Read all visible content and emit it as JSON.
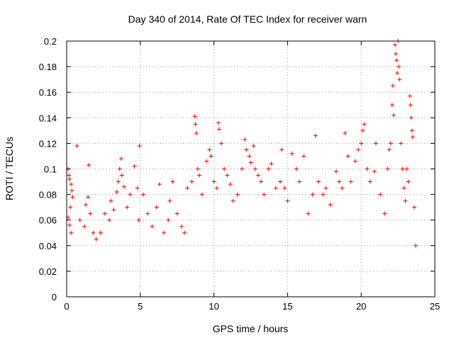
{
  "chart_data": {
    "type": "scatter",
    "title": "Day 340 of 2014, Rate Of TEC Index for receiver warn",
    "xlabel": "GPS time / hours",
    "ylabel": "ROTI / TECUs",
    "xlim": [
      0,
      25
    ],
    "ylim": [
      0,
      0.2
    ],
    "x_ticks": [
      0,
      5,
      10,
      15,
      20,
      25
    ],
    "y_ticks": [
      0,
      0.02,
      0.04,
      0.06,
      0.08,
      0.1,
      0.12,
      0.14,
      0.16,
      0.18,
      0.2
    ],
    "x_tick_labels": [
      "0",
      "5",
      "10",
      "15",
      "20",
      "25"
    ],
    "y_tick_labels": [
      "0",
      "0.02",
      "0.04",
      "0.06",
      "0.08",
      "0.1",
      "0.12",
      "0.14",
      "0.16",
      "0.18",
      "0.2"
    ],
    "grid": true,
    "marker": "+",
    "color": "#ff0000",
    "series": [
      {
        "points": [
          [
            0.1,
            0.1
          ],
          [
            0.15,
            0.095
          ],
          [
            0.2,
            0.092
          ],
          [
            0.3,
            0.088
          ],
          [
            0.35,
            0.083
          ],
          [
            0.4,
            0.078
          ],
          [
            0.25,
            0.07
          ],
          [
            0.1,
            0.062
          ],
          [
            0.2,
            0.056
          ],
          [
            0.3,
            0.05
          ],
          [
            0.7,
            0.118
          ],
          [
            0.9,
            0.06
          ],
          [
            1.2,
            0.055
          ],
          [
            1.3,
            0.072
          ],
          [
            1.45,
            0.078
          ],
          [
            1.5,
            0.103
          ],
          [
            1.6,
            0.065
          ],
          [
            1.8,
            0.05
          ],
          [
            2.0,
            0.045
          ],
          [
            2.3,
            0.05
          ],
          [
            2.6,
            0.065
          ],
          [
            2.9,
            0.06
          ],
          [
            3.0,
            0.075
          ],
          [
            3.2,
            0.068
          ],
          [
            3.4,
            0.082
          ],
          [
            3.5,
            0.09
          ],
          [
            3.6,
            0.1
          ],
          [
            3.7,
            0.108
          ],
          [
            3.75,
            0.095
          ],
          [
            3.9,
            0.086
          ],
          [
            4.1,
            0.07
          ],
          [
            4.3,
            0.08
          ],
          [
            4.6,
            0.102
          ],
          [
            4.8,
            0.085
          ],
          [
            4.9,
            0.06
          ],
          [
            4.95,
            0.118
          ],
          [
            5.2,
            0.08
          ],
          [
            5.5,
            0.065
          ],
          [
            5.8,
            0.055
          ],
          [
            6.1,
            0.07
          ],
          [
            6.3,
            0.088
          ],
          [
            6.6,
            0.05
          ],
          [
            6.9,
            0.06
          ],
          [
            7.0,
            0.075
          ],
          [
            7.2,
            0.09
          ],
          [
            7.5,
            0.065
          ],
          [
            7.8,
            0.055
          ],
          [
            8.0,
            0.05
          ],
          [
            8.2,
            0.085
          ],
          [
            8.5,
            0.09
          ],
          [
            8.7,
            0.141
          ],
          [
            8.75,
            0.135
          ],
          [
            8.8,
            0.128
          ],
          [
            8.9,
            0.1
          ],
          [
            9.0,
            0.095
          ],
          [
            9.2,
            0.08
          ],
          [
            9.5,
            0.106
          ],
          [
            9.7,
            0.115
          ],
          [
            9.8,
            0.11
          ],
          [
            10.0,
            0.09
          ],
          [
            10.2,
            0.085
          ],
          [
            10.3,
            0.136
          ],
          [
            10.35,
            0.131
          ],
          [
            10.5,
            0.12
          ],
          [
            10.7,
            0.1
          ],
          [
            10.9,
            0.095
          ],
          [
            11.1,
            0.088
          ],
          [
            11.3,
            0.075
          ],
          [
            11.6,
            0.08
          ],
          [
            11.9,
            0.1
          ],
          [
            12.1,
            0.123
          ],
          [
            12.2,
            0.115
          ],
          [
            12.4,
            0.11
          ],
          [
            12.5,
            0.105
          ],
          [
            12.7,
            0.118
          ],
          [
            12.8,
            0.1
          ],
          [
            13.0,
            0.095
          ],
          [
            13.2,
            0.09
          ],
          [
            13.4,
            0.08
          ],
          [
            13.7,
            0.1
          ],
          [
            13.9,
            0.104
          ],
          [
            14.2,
            0.085
          ],
          [
            14.5,
            0.09
          ],
          [
            14.6,
            0.115
          ],
          [
            14.8,
            0.085
          ],
          [
            15.0,
            0.075
          ],
          [
            15.3,
            0.112
          ],
          [
            15.6,
            0.1
          ],
          [
            15.8,
            0.09
          ],
          [
            16.1,
            0.11
          ],
          [
            16.4,
            0.065
          ],
          [
            16.7,
            0.08
          ],
          [
            16.9,
            0.126
          ],
          [
            17.1,
            0.09
          ],
          [
            17.4,
            0.08
          ],
          [
            17.6,
            0.085
          ],
          [
            17.9,
            0.072
          ],
          [
            18.3,
            0.098
          ],
          [
            18.5,
            0.09
          ],
          [
            18.7,
            0.085
          ],
          [
            18.9,
            0.128
          ],
          [
            19.1,
            0.11
          ],
          [
            19.3,
            0.09
          ],
          [
            19.6,
            0.106
          ],
          [
            19.8,
            0.115
          ],
          [
            20.0,
            0.12
          ],
          [
            20.1,
            0.13
          ],
          [
            20.2,
            0.135
          ],
          [
            20.4,
            0.1
          ],
          [
            20.6,
            0.09
          ],
          [
            20.9,
            0.098
          ],
          [
            21.0,
            0.12
          ],
          [
            21.3,
            0.08
          ],
          [
            21.6,
            0.065
          ],
          [
            21.8,
            0.1
          ],
          [
            21.9,
            0.115
          ],
          [
            22.0,
            0.12
          ],
          [
            22.1,
            0.15
          ],
          [
            22.15,
            0.165
          ],
          [
            22.2,
            0.142
          ],
          [
            22.3,
            0.197
          ],
          [
            22.35,
            0.19
          ],
          [
            22.4,
            0.185
          ],
          [
            22.45,
            0.175
          ],
          [
            22.5,
            0.2
          ],
          [
            22.55,
            0.18
          ],
          [
            22.6,
            0.17
          ],
          [
            22.7,
            0.12
          ],
          [
            22.8,
            0.1
          ],
          [
            22.9,
            0.085
          ],
          [
            23.0,
            0.075
          ],
          [
            23.1,
            0.1
          ],
          [
            23.2,
            0.09
          ],
          [
            23.3,
            0.157
          ],
          [
            23.35,
            0.15
          ],
          [
            23.4,
            0.14
          ],
          [
            23.45,
            0.13
          ],
          [
            23.5,
            0.125
          ],
          [
            23.6,
            0.07
          ],
          [
            23.7,
            0.04
          ]
        ]
      }
    ]
  }
}
